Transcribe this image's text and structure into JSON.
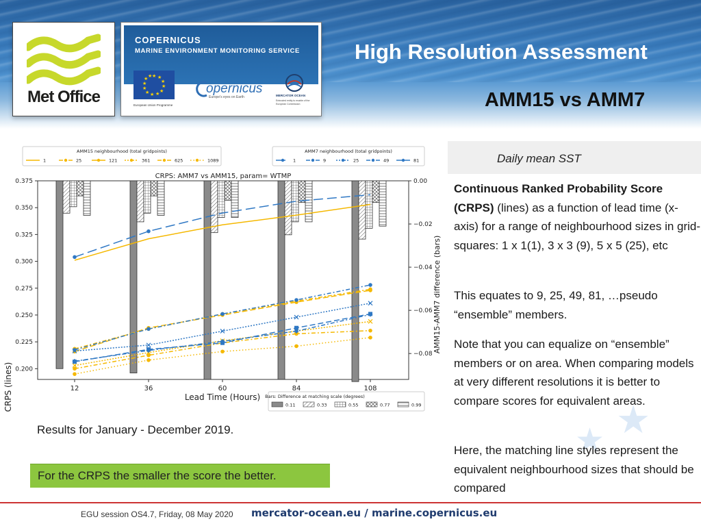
{
  "header": {
    "title": "High Resolution Assessment",
    "subtitle": "AMM15 vs AMM7"
  },
  "logos": {
    "met_office": "Met Office",
    "copernicus_line1": "COPERNICUS",
    "copernicus_line2": "MARINE ENVIRONMENT MONITORING SERVICE",
    "eu_label": "European Union Programme",
    "copernicus_name": "opernicus",
    "copernicus_tagline": "Europe's eyes on Earth",
    "mercator_name": "MERCATOR OCEAN",
    "mercator_tagline": "Entrusted entity to enable of the European Commission"
  },
  "right_panel": {
    "heading": "Daily mean SST",
    "p1_bold": "Continuous Ranked Probability Score (CRPS)",
    "p1_rest": " (lines) as a function of lead time (x-axis) for a range of neighbourhood sizes in grid-squares: 1 x 1(1), 3 x 3 (9), 5 x 5 (25), etc",
    "p2": "This equates to 9, 25, 49, 81, …pseudo “ensemble” members.",
    "p3": "Note that you can equalize on “ensemble” members or on area. When comparing models at very different resolutions it is better to compare scores for equivalent areas.",
    "p4": "Here, the matching line styles represent the equivalent neighbourhood sizes that should be compared"
  },
  "results_text": "Results for January - December 2019.",
  "note_box": "For the CRPS the smaller the score the better.",
  "footer": {
    "session": "EGU session OS4.7, Friday, 08 May 2020",
    "url": "mercator-ocean.eu / marine.copernicus.eu"
  },
  "colors": {
    "amm15": "#f5b800",
    "amm7": "#2f78c4",
    "bar_fill": "#8a8a8a",
    "note_green": "#8cc63f"
  },
  "chart_data": {
    "type": "line",
    "title": "CRPS: AMM7 vs AMM15, param= WTMP",
    "xlabel": "Lead Time (Hours)",
    "ylabel": "CRPS (lines)",
    "y2label": "AMM15-AMM7 difference (bars)",
    "x": [
      12,
      36,
      60,
      84,
      108
    ],
    "xticks": [
      "12",
      "36",
      "60",
      "84",
      "108"
    ],
    "ylim": [
      0.19,
      0.375
    ],
    "yticks": [
      "0.200",
      "0.225",
      "0.250",
      "0.275",
      "0.300",
      "0.325",
      "0.350",
      "0.375"
    ],
    "y2lim": [
      -0.092,
      0.0
    ],
    "y2ticks": [
      "0.00",
      "−0.02",
      "−0.04",
      "−0.06",
      "−0.08"
    ],
    "legend_amm15_title": "AMM15 neighbourhood (total gridpoints)",
    "legend_amm7_title": "AMM7 neighbourhood (total gridpoints)",
    "legend_bars_title": "Bars: Difference at matching scale (degrees)",
    "amm15_series": [
      {
        "name": "1",
        "style": "solid",
        "values": [
          0.301,
          0.321,
          0.334,
          0.343,
          0.353
        ]
      },
      {
        "name": "25",
        "style": "dashdot",
        "values": [
          0.2185,
          0.237,
          0.251,
          0.263,
          0.274
        ]
      },
      {
        "name": "121",
        "style": "dash",
        "values": [
          0.216,
          0.238,
          0.25,
          0.262,
          0.273
        ]
      },
      {
        "name": "361",
        "style": "dot",
        "values": [
          0.203,
          0.215,
          0.226,
          0.235,
          0.244
        ]
      },
      {
        "name": "625",
        "style": "dashdot",
        "values": [
          0.2,
          0.2125,
          0.224,
          0.2325,
          0.2355
        ]
      },
      {
        "name": "1089",
        "style": "loosedot",
        "values": [
          0.195,
          0.208,
          0.216,
          0.221,
          0.229
        ]
      }
    ],
    "amm7_series": [
      {
        "name": "1",
        "style": "longdash",
        "values": [
          0.304,
          0.328,
          0.345,
          0.356,
          0.362
        ]
      },
      {
        "name": "9",
        "style": "dashdot",
        "values": [
          0.2175,
          0.237,
          0.251,
          0.264,
          0.278
        ]
      },
      {
        "name": "25",
        "style": "dot",
        "values": [
          0.2165,
          0.222,
          0.235,
          0.248,
          0.261
        ]
      },
      {
        "name": "49",
        "style": "dashdot",
        "values": [
          0.207,
          0.217,
          0.2255,
          0.235,
          0.2505
        ]
      },
      {
        "name": "81",
        "style": "dash",
        "values": [
          0.2065,
          0.218,
          0.224,
          0.238,
          0.251
        ]
      }
    ],
    "bar_series": [
      {
        "name": "0.11",
        "hatch": "solid",
        "values": [
          -0.087,
          -0.089,
          -0.092,
          -0.092,
          -0.093
        ]
      },
      {
        "name": "0.33",
        "hatch": "diag",
        "values": [
          -0.015,
          -0.019,
          -0.024,
          -0.025,
          -0.027
        ]
      },
      {
        "name": "0.55",
        "hatch": "grid",
        "values": [
          -0.012,
          -0.015,
          -0.017,
          -0.019,
          -0.022
        ]
      },
      {
        "name": "0.77",
        "hatch": "cross",
        "values": [
          -0.007,
          -0.007,
          -0.009,
          -0.01,
          -0.01
        ]
      },
      {
        "name": "0.99",
        "hatch": "horiz",
        "values": [
          -0.016,
          -0.016,
          -0.017,
          -0.019,
          -0.021
        ]
      }
    ]
  }
}
